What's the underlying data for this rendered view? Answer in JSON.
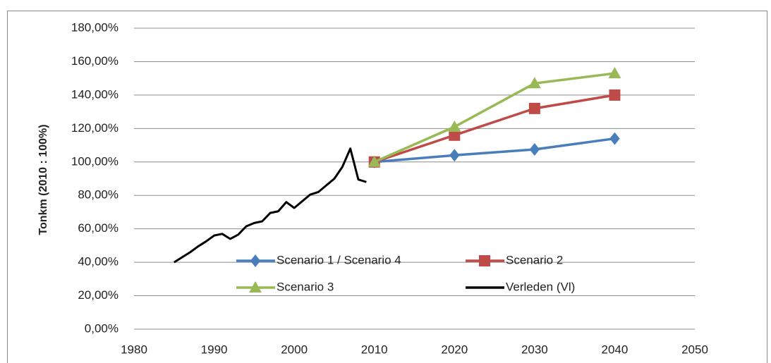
{
  "chart_data": {
    "type": "line",
    "y_label": "Tonkm (2010 : 100%)",
    "xlim": [
      1980,
      2050
    ],
    "xticks": [
      1980,
      1990,
      2000,
      2010,
      2020,
      2030,
      2040,
      2050
    ],
    "ylim": [
      0,
      180
    ],
    "yticks": [
      {
        "value": 0,
        "label": "0,00%"
      },
      {
        "value": 20,
        "label": "20,00%"
      },
      {
        "value": 40,
        "label": "40,00%"
      },
      {
        "value": 60,
        "label": "60,00%"
      },
      {
        "value": 80,
        "label": "80,00%"
      },
      {
        "value": 100,
        "label": "100,00%"
      },
      {
        "value": 120,
        "label": "120,00%"
      },
      {
        "value": 140,
        "label": "140,00%"
      },
      {
        "value": 160,
        "label": "160,00%"
      },
      {
        "value": 180,
        "label": "180,00%"
      }
    ],
    "grid": true,
    "series": [
      {
        "name": "Scenario 1 / Scenario 4",
        "color": "#4a7ebb",
        "marker": "diamond",
        "x": [
          2010,
          2020,
          2030,
          2040
        ],
        "values": [
          100,
          104,
          107.5,
          114
        ]
      },
      {
        "name": "Scenario 2",
        "color": "#be4b48",
        "marker": "square",
        "x": [
          2010,
          2020,
          2030,
          2040
        ],
        "values": [
          100,
          116,
          132,
          140
        ]
      },
      {
        "name": "Scenario 3",
        "color": "#98b954",
        "marker": "triangle",
        "x": [
          2010,
          2020,
          2030,
          2040
        ],
        "values": [
          100,
          121,
          147,
          153
        ]
      },
      {
        "name": "Verleden (Vl)",
        "color": "#000000",
        "x": [
          1985,
          1986,
          1987,
          1988,
          1989,
          1990,
          1991,
          1992,
          1993,
          1994,
          1995,
          1996,
          1997,
          1998,
          1999,
          2000,
          2001,
          2002,
          2003,
          2004,
          2005,
          2006,
          2007,
          2008,
          2009
        ],
        "values": [
          40,
          43,
          46,
          49.5,
          52.5,
          56,
          57,
          54,
          56.5,
          61.5,
          63.5,
          64.5,
          69.5,
          70.5,
          76,
          72.5,
          76.5,
          80.5,
          82,
          86,
          90,
          97,
          108,
          89.5,
          88
        ]
      }
    ]
  }
}
